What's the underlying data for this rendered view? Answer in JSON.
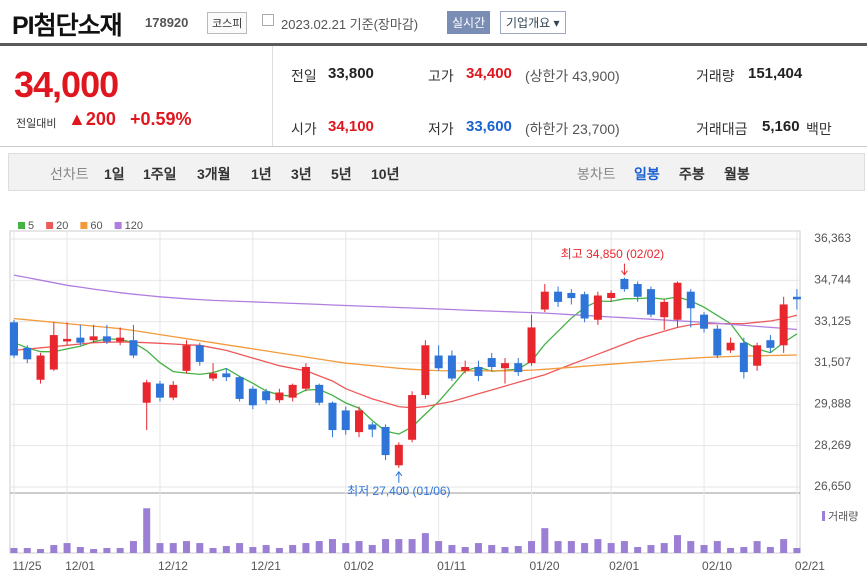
{
  "header": {
    "name": "PI첨단소재",
    "code": "178920",
    "market": "코스피",
    "date": "2023.02.21 기준(장마감)",
    "realtime": "실시간",
    "company": "기업개요 ▾"
  },
  "quote": {
    "price": "34,000",
    "change_label": "전일대비",
    "change": "▲200",
    "change_pct": "+0.59%"
  },
  "stats": [
    [
      {
        "label": "전일",
        "value": "33,800"
      },
      {
        "label": "고가",
        "value": "34,400",
        "note": "(상한가 43,900)"
      },
      {
        "label": "거래량",
        "value": "151,404"
      }
    ],
    [
      {
        "label": "시가",
        "value": "34,100"
      },
      {
        "label": "저가",
        "value": "33,600",
        "note": "(하한가 23,700)"
      },
      {
        "label": "거래대금",
        "value": "5,160",
        "unit": "백만"
      }
    ]
  ],
  "tabs": {
    "line_label": "선차트",
    "line": [
      "1일",
      "1주일",
      "3개월",
      "1년",
      "3년",
      "5년",
      "10년"
    ],
    "candle_label": "봉차트",
    "candle": [
      "일봉",
      "주봉",
      "월봉"
    ]
  },
  "chart_data": {
    "type": "candlestick",
    "categories": [
      "11/25",
      null,
      null,
      null,
      "12/01",
      null,
      null,
      null,
      null,
      null,
      null,
      "12/12",
      null,
      null,
      null,
      null,
      null,
      null,
      "12/21",
      null,
      null,
      null,
      null,
      null,
      null,
      "01/02",
      null,
      null,
      null,
      null,
      null,
      null,
      "01/11",
      null,
      null,
      null,
      null,
      null,
      null,
      "01/20",
      null,
      null,
      null,
      null,
      null,
      "02/01",
      null,
      null,
      null,
      null,
      null,
      null,
      "02/10",
      null,
      null,
      null,
      null,
      null,
      null,
      "02/21"
    ],
    "open": [
      33100,
      32100,
      30850,
      31250,
      32350,
      32500,
      32400,
      32550,
      32350,
      32400,
      29950,
      30700,
      30150,
      31200,
      32200,
      30900,
      31100,
      30950,
      30500,
      30400,
      30050,
      30150,
      30500,
      30650,
      29950,
      29650,
      28800,
      29100,
      29000,
      27500,
      28500,
      30250,
      31800,
      31800,
      31200,
      31350,
      31700,
      31300,
      31500,
      31500,
      33600,
      34300,
      34250,
      34200,
      33200,
      34050,
      34800,
      34600,
      34400,
      33300,
      33200,
      34300,
      33400,
      32850,
      32000,
      32300,
      31400,
      32400,
      32200,
      34100
    ],
    "high": [
      33200,
      32200,
      31900,
      33100,
      33100,
      33000,
      33000,
      33000,
      32900,
      33000,
      30850,
      30800,
      30800,
      32400,
      32300,
      31500,
      31300,
      31000,
      30600,
      30500,
      30500,
      30700,
      31500,
      30700,
      30000,
      29800,
      29800,
      29200,
      29100,
      28400,
      30400,
      32400,
      32200,
      32000,
      31600,
      31600,
      31900,
      31700,
      31700,
      33400,
      34600,
      34500,
      34400,
      34300,
      34300,
      34350,
      34850,
      34700,
      34500,
      34000,
      34700,
      34400,
      33500,
      33000,
      32500,
      32500,
      32300,
      32600,
      34100,
      34400
    ],
    "low": [
      31700,
      31500,
      30700,
      31200,
      32200,
      32200,
      32300,
      32250,
      32200,
      31700,
      28880,
      30000,
      30050,
      31100,
      31400,
      30800,
      30800,
      30000,
      29700,
      29900,
      29950,
      30000,
      30400,
      29850,
      28600,
      28700,
      28600,
      28600,
      27700,
      27400,
      28400,
      30100,
      31200,
      30800,
      31100,
      30800,
      31200,
      30700,
      31000,
      31400,
      33500,
      33700,
      33800,
      33100,
      33000,
      33900,
      34300,
      33900,
      33300,
      32800,
      32900,
      32900,
      32700,
      31700,
      31900,
      30900,
      31200,
      31900,
      31900,
      33600
    ],
    "close": [
      31800,
      31650,
      31800,
      32600,
      32450,
      32300,
      32550,
      32350,
      32500,
      31800,
      30750,
      30150,
      30650,
      32200,
      31550,
      31100,
      30950,
      30100,
      29850,
      30050,
      30350,
      30650,
      31350,
      29950,
      28880,
      28880,
      29650,
      28900,
      27900,
      28300,
      30250,
      32200,
      31300,
      30900,
      31350,
      31000,
      31350,
      31500,
      31150,
      32900,
      34300,
      33900,
      34050,
      33250,
      34150,
      34250,
      34400,
      34100,
      33400,
      33900,
      34650,
      33650,
      32850,
      31800,
      32300,
      31150,
      32200,
      32100,
      33800,
      34000
    ],
    "up_color": "#e8262e",
    "down_color": "#2f74d8",
    "lines": [
      {
        "name": "5",
        "color": "#44b244",
        "values": [
          32300,
          32100,
          31950,
          31950,
          32060,
          32160,
          32340,
          32450,
          32430,
          32300,
          31990,
          31520,
          31170,
          31110,
          31060,
          31130,
          31290,
          30980,
          30710,
          30410,
          30260,
          30200,
          30450,
          30470,
          30240,
          29940,
          29740,
          29250,
          28840,
          28720,
          29000,
          29510,
          29990,
          30590,
          31200,
          31350,
          31180,
          31220,
          31270,
          31580,
          32240,
          32750,
          33260,
          33680,
          33930,
          33920,
          34020,
          34030,
          34060,
          34010,
          34090,
          33940,
          33690,
          33370,
          33050,
          32350,
          32060,
          31910,
          32310,
          32650
        ]
      },
      {
        "name": "20",
        "color": "#ee5a5a",
        "values": [
          32000,
          32050,
          32100,
          32150,
          32200,
          32250,
          32300,
          32320,
          32330,
          32320,
          32300,
          32280,
          32250,
          32220,
          32200,
          32100,
          32000,
          31850,
          31700,
          31550,
          31400,
          31300,
          31200,
          31000,
          30800,
          30500,
          30300,
          30100,
          29950,
          29800,
          29750,
          29800,
          29900,
          30000,
          30150,
          30300,
          30450,
          30600,
          30750,
          30900,
          31050,
          31250,
          31450,
          31650,
          31850,
          32050,
          32250,
          32450,
          32600,
          32750,
          32900,
          33000,
          33050,
          33050,
          33050,
          33050,
          33100,
          33150,
          33250,
          33380
        ]
      },
      {
        "name": "60",
        "color": "#f39a3a",
        "values": [
          33250,
          33200,
          33150,
          33100,
          33050,
          33000,
          32950,
          32900,
          32850,
          32780,
          32700,
          32620,
          32540,
          32460,
          32380,
          32300,
          32220,
          32140,
          32060,
          31980,
          31900,
          31820,
          31740,
          31660,
          31580,
          31500,
          31450,
          31400,
          31350,
          31300,
          31260,
          31230,
          31210,
          31200,
          31200,
          31200,
          31200,
          31200,
          31210,
          31230,
          31260,
          31300,
          31340,
          31380,
          31420,
          31460,
          31500,
          31540,
          31580,
          31620,
          31660,
          31690,
          31720,
          31740,
          31760,
          31780,
          31790,
          31800,
          31810,
          31820
        ]
      },
      {
        "name": "120",
        "color": "#b07ee0",
        "values": [
          34950,
          34850,
          34750,
          34650,
          34550,
          34480,
          34400,
          34330,
          34260,
          34200,
          34150,
          34100,
          34060,
          34020,
          33990,
          33960,
          33940,
          33920,
          33900,
          33880,
          33860,
          33840,
          33820,
          33800,
          33780,
          33760,
          33740,
          33720,
          33700,
          33680,
          33660,
          33640,
          33620,
          33600,
          33580,
          33560,
          33540,
          33520,
          33500,
          33480,
          33460,
          33430,
          33400,
          33370,
          33340,
          33310,
          33280,
          33250,
          33220,
          33190,
          33160,
          33130,
          33100,
          33060,
          33020,
          32980,
          32940,
          32900,
          32860,
          32820
        ]
      }
    ],
    "ylim": [
      26650,
      36363
    ],
    "yticks": [
      {
        "value": 26650,
        "label": "26,650"
      },
      {
        "value": 28269,
        "label": "28,269"
      },
      {
        "value": 29888,
        "label": "29,888"
      },
      {
        "value": 31507,
        "label": "31,507"
      },
      {
        "value": 33125,
        "label": "33,125"
      },
      {
        "value": 34744,
        "label": "34,744"
      },
      {
        "value": 36363,
        "label": "36,363"
      }
    ],
    "grid": true,
    "annotations": {
      "high": "최고 34,850 (02/02)",
      "low": "최저 27,400 (01/06)"
    },
    "volume": {
      "name": "거래량",
      "color": "#9a7fd4",
      "ylim": [
        0,
        1600000
      ],
      "values": [
        150000,
        150000,
        120000,
        240000,
        300000,
        180000,
        120000,
        150000,
        150000,
        360000,
        1350000,
        300000,
        300000,
        360000,
        300000,
        150000,
        210000,
        300000,
        180000,
        240000,
        150000,
        240000,
        300000,
        360000,
        420000,
        300000,
        360000,
        240000,
        420000,
        420000,
        420000,
        600000,
        360000,
        240000,
        180000,
        300000,
        240000,
        180000,
        210000,
        360000,
        750000,
        360000,
        360000,
        300000,
        420000,
        300000,
        360000,
        180000,
        240000,
        300000,
        540000,
        360000,
        240000,
        360000,
        150000,
        180000,
        360000,
        180000,
        420000,
        151404
      ]
    }
  }
}
